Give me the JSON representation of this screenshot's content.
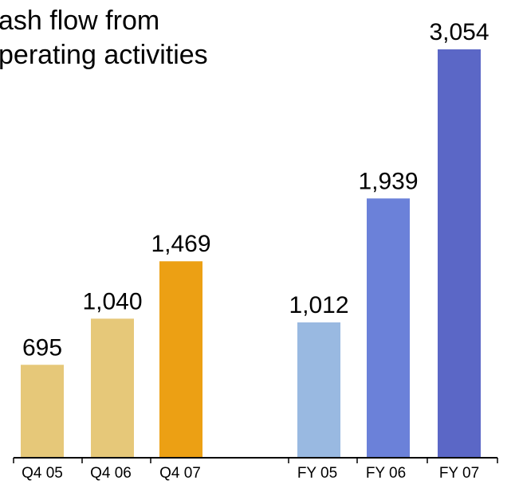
{
  "chart_data": {
    "type": "bar",
    "title_lines": [
      "ash flow from",
      "perating activities"
    ],
    "xlabel": "",
    "ylabel": "",
    "ylim": [
      0,
      3054
    ],
    "grid": false,
    "categories": [
      "Q4 05",
      "Q4 06",
      "Q4 07",
      "FY 05",
      "FY 06",
      "FY 07"
    ],
    "values": [
      695,
      1040,
      1469,
      1012,
      1939,
      3054
    ],
    "value_labels": [
      "695",
      "1,040",
      "1,469",
      "1,012",
      "1,939",
      "3,054"
    ],
    "colors": [
      "#E6C879",
      "#E6C879",
      "#ECA014",
      "#99B9E1",
      "#6B81D9",
      "#5B67C6"
    ],
    "axis_color": "#000000"
  }
}
